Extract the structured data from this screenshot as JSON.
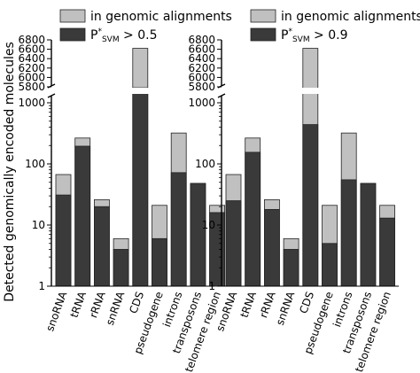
{
  "chart_data": [
    {
      "type": "bar",
      "layout": "stacked-overlay",
      "ylabel": "Detected genomically encoded molecules",
      "yscale": "log-with-broken-axis",
      "ylim_lower": [
        1,
        1000
      ],
      "ylim_upper": [
        5800,
        6800
      ],
      "lower_ticks": [
        "1",
        "10",
        "100",
        "1000"
      ],
      "upper_ticks": [
        "5800",
        "6000",
        "6200",
        "6400",
        "6600",
        "6800"
      ],
      "categories": [
        "snoRNA",
        "tRNA",
        "rRNA",
        "snRNA",
        "CDS",
        "pseudogene",
        "introns",
        "transposons",
        "telomere region"
      ],
      "legend": {
        "placement": "top",
        "entries": [
          {
            "label": "in genomic alignments",
            "sup": "",
            "sub": "",
            "suffix": "",
            "color": "#c0c0c0"
          },
          {
            "label": "P",
            "sup": "*",
            "sub": "SVM",
            "suffix": " > 0.5",
            "color": "#3a3a3a"
          }
        ]
      },
      "series": [
        {
          "name": "in genomic alignments",
          "values": [
            67,
            265,
            26,
            6,
            6620,
            21,
            320,
            48,
            21
          ]
        },
        {
          "name": "P*SVM > 0.5",
          "values": [
            31,
            195,
            20,
            4,
            1300,
            6,
            72,
            48,
            16
          ]
        }
      ]
    },
    {
      "type": "bar",
      "layout": "stacked-overlay",
      "yscale": "log-with-broken-axis",
      "ylim_lower": [
        1,
        1000
      ],
      "ylim_upper": [
        5800,
        6800
      ],
      "lower_ticks": [
        "1",
        "10",
        "100",
        "1000"
      ],
      "upper_ticks": [
        "5800",
        "6000",
        "6200",
        "6400",
        "6600",
        "6800"
      ],
      "categories": [
        "snoRNA",
        "tRNA",
        "rRNA",
        "snRNA",
        "CDS",
        "pseudogene",
        "introns",
        "transposons",
        "telomere region"
      ],
      "legend": {
        "placement": "top",
        "entries": [
          {
            "label": "in genomic alignments",
            "sup": "",
            "sub": "",
            "suffix": "",
            "color": "#c0c0c0"
          },
          {
            "label": "P",
            "sup": "*",
            "sub": "SVM",
            "suffix": " > 0.9",
            "color": "#3a3a3a"
          }
        ]
      },
      "series": [
        {
          "name": "in genomic alignments",
          "values": [
            67,
            265,
            26,
            6,
            6620,
            21,
            320,
            48,
            21
          ]
        },
        {
          "name": "P*SVM > 0.9",
          "values": [
            25,
            155,
            18,
            4,
            440,
            5,
            55,
            48,
            13
          ]
        }
      ]
    }
  ]
}
